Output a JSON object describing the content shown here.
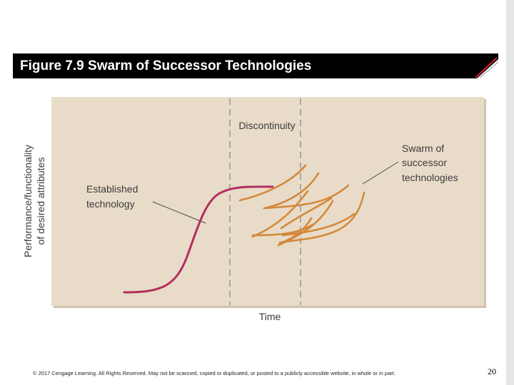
{
  "slide": {
    "title": "Figure 7.9 Swarm of Successor Technologies",
    "footer": "© 2017 Cengage Learning. All Rights Reserved. May not be scanned, copied or duplicated, or posted to a publicly accessible website, in whole or in part.",
    "page_number": "20"
  },
  "diagram": {
    "discontinuity_label": "Discontinuity",
    "y_axis_label_line1": "Performance/functionality",
    "y_axis_label_line2": "of desired attributes",
    "x_axis_label": "Time",
    "established_label_line1": "Established",
    "established_label_line2": "technology",
    "swarm_label_line1": "Swarm of",
    "swarm_label_line2": "successor",
    "swarm_label_line3": "technologies",
    "colors": {
      "plot_background": "#e8dcc9",
      "established_curve": "#b52d5f",
      "successor_curves": "#d4893b",
      "title_bar": "#000000",
      "accent": "#d9232e"
    }
  }
}
